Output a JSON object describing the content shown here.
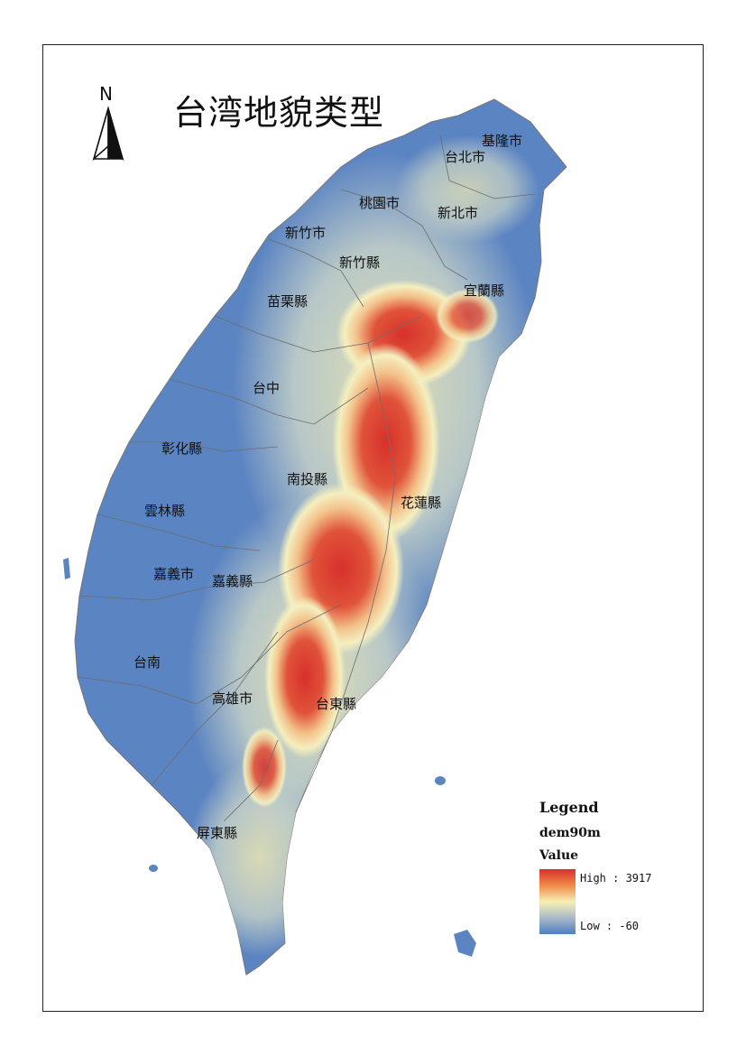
{
  "map": {
    "title": "台湾地貌类型",
    "north_letter": "N",
    "places": [
      {
        "name": "基隆市"
      },
      {
        "name": "台北市"
      },
      {
        "name": "桃園市"
      },
      {
        "name": "新北市"
      },
      {
        "name": "新竹市"
      },
      {
        "name": "新竹縣"
      },
      {
        "name": "宜蘭縣"
      },
      {
        "name": "苗栗縣"
      },
      {
        "name": "台中"
      },
      {
        "name": "彰化縣"
      },
      {
        "name": "南投縣"
      },
      {
        "name": "花蓮縣"
      },
      {
        "name": "雲林縣"
      },
      {
        "name": "嘉義市"
      },
      {
        "name": "嘉義縣"
      },
      {
        "name": "台南"
      },
      {
        "name": "高雄市"
      },
      {
        "name": "台東縣"
      },
      {
        "name": "屏東縣"
      }
    ]
  },
  "legend": {
    "title": "Legend",
    "layer": "dem90m",
    "field": "Value",
    "high_label": "High : 3917",
    "low_label": "Low : -60",
    "colors": {
      "high": "#d7302a",
      "mid_high": "#f08a4b",
      "mid": "#f7efb2",
      "mid_low": "#a9b9c8",
      "low": "#4f7fc0"
    }
  }
}
